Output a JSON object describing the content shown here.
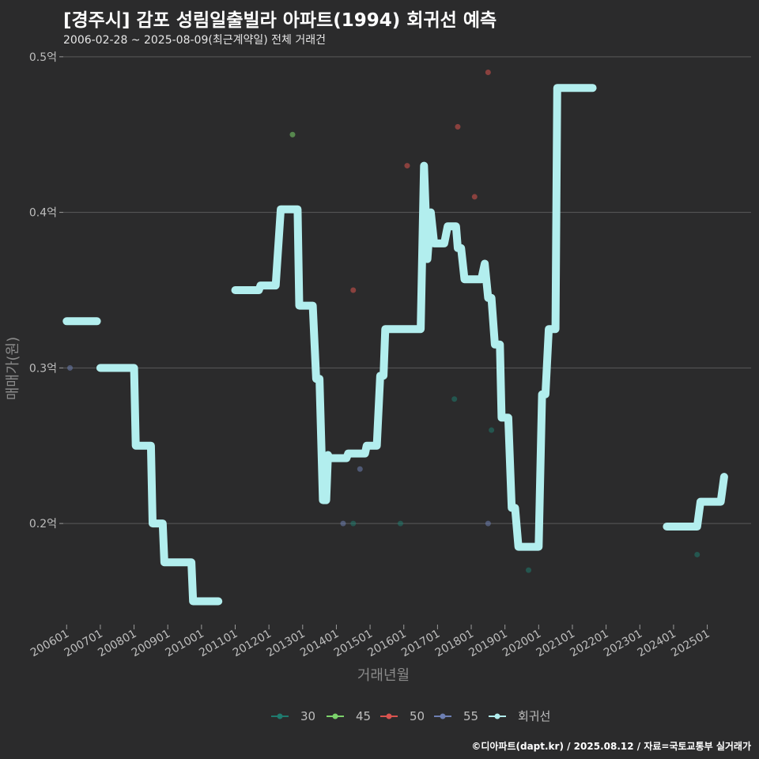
{
  "header": {
    "title": "[경주시] 감포 성림일출빌라 아파트(1994) 회귀선 예측",
    "subtitle": "2006-02-28 ~ 2025-08-09(최근계약일) 전체 거래건"
  },
  "caption": "©디아파트(dapt.kr) / 2025.08.12 / 자료=국토교통부 실거래가",
  "colors": {
    "background": "#2b2b2c",
    "grid": "#5a5a5a",
    "regression": "#b2eeee",
    "s30": "#1f7a6e",
    "s45": "#7bd36b",
    "s50": "#d9534f",
    "s55": "#6d7fb3"
  },
  "chart_data": {
    "type": "scatter",
    "title": "[경주시] 감포 성림일출빌라 아파트(1994) 회귀선 예측",
    "xlabel": "거래년월",
    "ylabel": "매매가(원)",
    "x_range": [
      2005.9,
      2026.3
    ],
    "ylim": [
      0.135,
      0.505
    ],
    "y_ticks": [
      {
        "value": 0.2,
        "label": "0.2억"
      },
      {
        "value": 0.3,
        "label": "0.3억"
      },
      {
        "value": 0.4,
        "label": "0.4억"
      },
      {
        "value": 0.5,
        "label": "0.5억"
      }
    ],
    "x_ticks": [
      {
        "value": 2006.0,
        "label": "200601"
      },
      {
        "value": 2007.0,
        "label": "200701"
      },
      {
        "value": 2008.0,
        "label": "200801"
      },
      {
        "value": 2009.0,
        "label": "200901"
      },
      {
        "value": 2010.0,
        "label": "201001"
      },
      {
        "value": 2011.0,
        "label": "201101"
      },
      {
        "value": 2012.0,
        "label": "201201"
      },
      {
        "value": 2013.0,
        "label": "201301"
      },
      {
        "value": 2014.0,
        "label": "201401"
      },
      {
        "value": 2015.0,
        "label": "201501"
      },
      {
        "value": 2016.0,
        "label": "201601"
      },
      {
        "value": 2017.0,
        "label": "201701"
      },
      {
        "value": 2018.0,
        "label": "201801"
      },
      {
        "value": 2019.0,
        "label": "201901"
      },
      {
        "value": 2020.0,
        "label": "202001"
      },
      {
        "value": 2021.0,
        "label": "202101"
      },
      {
        "value": 2022.0,
        "label": "202201"
      },
      {
        "value": 2023.0,
        "label": "202301"
      },
      {
        "value": 2024.0,
        "label": "202401"
      },
      {
        "value": 2025.0,
        "label": "202501"
      }
    ],
    "series": [
      {
        "name": "30",
        "color_key": "s30",
        "points": [
          [
            2014.5,
            0.2
          ],
          [
            2015.9,
            0.2
          ],
          [
            2017.5,
            0.28
          ],
          [
            2018.6,
            0.26
          ],
          [
            2019.7,
            0.17
          ],
          [
            2024.7,
            0.18
          ]
        ]
      },
      {
        "name": "45",
        "color_key": "s45",
        "points": [
          [
            2012.7,
            0.45
          ]
        ]
      },
      {
        "name": "50",
        "color_key": "s50",
        "points": [
          [
            2014.5,
            0.35
          ],
          [
            2016.1,
            0.43
          ],
          [
            2017.6,
            0.455
          ],
          [
            2018.1,
            0.41
          ],
          [
            2018.5,
            0.49
          ]
        ]
      },
      {
        "name": "55",
        "color_key": "s55",
        "points": [
          [
            2006.1,
            0.3
          ],
          [
            2014.2,
            0.2
          ],
          [
            2014.7,
            0.235
          ],
          [
            2018.5,
            0.2
          ]
        ]
      }
    ],
    "regression": {
      "name": "회귀선",
      "segments": [
        [
          [
            2006.0,
            0.33
          ],
          [
            2006.9,
            0.33
          ]
        ],
        [
          [
            2007.0,
            0.3
          ],
          [
            2008.0,
            0.3
          ],
          [
            2008.05,
            0.25
          ],
          [
            2008.5,
            0.25
          ],
          [
            2008.55,
            0.2
          ],
          [
            2008.85,
            0.2
          ],
          [
            2008.9,
            0.175
          ],
          [
            2009.7,
            0.175
          ],
          [
            2009.75,
            0.15
          ],
          [
            2010.5,
            0.15
          ]
        ],
        [
          [
            2011.0,
            0.35
          ],
          [
            2011.7,
            0.35
          ],
          [
            2011.75,
            0.353
          ],
          [
            2012.2,
            0.353
          ],
          [
            2012.35,
            0.402
          ],
          [
            2012.85,
            0.402
          ],
          [
            2012.9,
            0.34
          ],
          [
            2013.3,
            0.34
          ],
          [
            2013.4,
            0.293
          ],
          [
            2013.5,
            0.293
          ],
          [
            2013.6,
            0.215
          ],
          [
            2013.7,
            0.215
          ],
          [
            2013.75,
            0.244
          ],
          [
            2013.8,
            0.242
          ],
          [
            2014.3,
            0.242
          ],
          [
            2014.35,
            0.245
          ],
          [
            2014.85,
            0.245
          ],
          [
            2014.9,
            0.25
          ],
          [
            2015.2,
            0.25
          ],
          [
            2015.3,
            0.295
          ],
          [
            2015.4,
            0.295
          ],
          [
            2015.45,
            0.325
          ],
          [
            2016.5,
            0.325
          ],
          [
            2016.6,
            0.43
          ],
          [
            2016.7,
            0.37
          ],
          [
            2016.8,
            0.4
          ],
          [
            2016.9,
            0.38
          ],
          [
            2017.2,
            0.38
          ],
          [
            2017.3,
            0.391
          ],
          [
            2017.55,
            0.391
          ],
          [
            2017.6,
            0.377
          ],
          [
            2017.7,
            0.377
          ],
          [
            2017.8,
            0.357
          ],
          [
            2018.3,
            0.357
          ],
          [
            2018.4,
            0.367
          ],
          [
            2018.5,
            0.345
          ],
          [
            2018.6,
            0.345
          ],
          [
            2018.7,
            0.315
          ],
          [
            2018.85,
            0.315
          ],
          [
            2018.9,
            0.268
          ],
          [
            2019.1,
            0.268
          ],
          [
            2019.2,
            0.21
          ],
          [
            2019.3,
            0.21
          ],
          [
            2019.4,
            0.185
          ],
          [
            2020.0,
            0.185
          ],
          [
            2020.1,
            0.283
          ],
          [
            2020.2,
            0.283
          ],
          [
            2020.3,
            0.325
          ],
          [
            2020.5,
            0.325
          ],
          [
            2020.55,
            0.48
          ],
          [
            2021.6,
            0.48
          ]
        ],
        [
          [
            2023.8,
            0.198
          ],
          [
            2024.7,
            0.198
          ],
          [
            2024.8,
            0.214
          ],
          [
            2025.4,
            0.214
          ],
          [
            2025.5,
            0.23
          ]
        ]
      ]
    },
    "legend": {
      "placement": "bottom",
      "items": [
        {
          "label": "30",
          "color_key": "s30"
        },
        {
          "label": "45",
          "color_key": "s45"
        },
        {
          "label": "50",
          "color_key": "s50"
        },
        {
          "label": "55",
          "color_key": "s55"
        },
        {
          "label": "회귀선",
          "color_key": "regression"
        }
      ]
    }
  }
}
